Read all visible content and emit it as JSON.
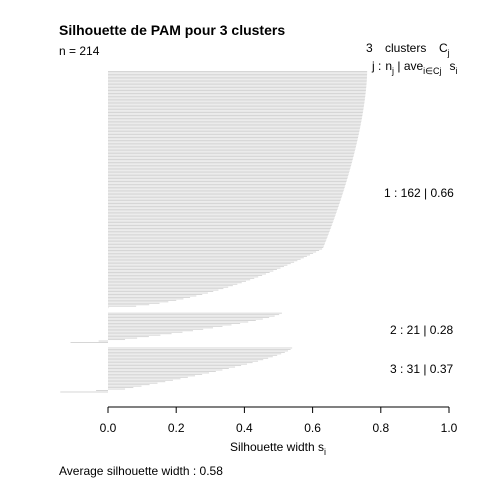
{
  "chart_data": {
    "type": "bar",
    "orientation": "horizontal",
    "title": "Silhouette de PAM pour 3 clusters",
    "n_label": "n = 214",
    "xlabel": "Silhouette width s",
    "xlabel_sub": "i",
    "xlim": [
      0,
      1
    ],
    "x_ticks": [
      "0.0",
      "0.2",
      "0.4",
      "0.6",
      "0.8",
      "1.0"
    ],
    "legend_header": {
      "line1_count": "3",
      "line1_word": "clusters",
      "line1_symbol": "C",
      "line1_symbol_sub": "j",
      "line2_j": "j :",
      "line2_n": "n",
      "line2_n_sub": "j",
      "line2_sep": " | ave",
      "line2_ave_sub": "i∈Cj",
      "line2_s": "s",
      "line2_s_sub": "i"
    },
    "clusters": [
      {
        "id": 1,
        "n": 162,
        "avg": 0.66,
        "label": "1 :   162  |  0.66",
        "max": 0.76,
        "min": 0.0
      },
      {
        "id": 2,
        "n": 21,
        "avg": 0.28,
        "label": "2 :   21  |  0.28",
        "max": 0.51,
        "min": -0.11
      },
      {
        "id": 3,
        "n": 31,
        "avg": 0.37,
        "label": "3 :   31  |  0.37",
        "max": 0.54,
        "min": -0.14
      }
    ],
    "average_label": "Average silhouette width :  0.58",
    "bar_color": "#d3d3d3"
  }
}
